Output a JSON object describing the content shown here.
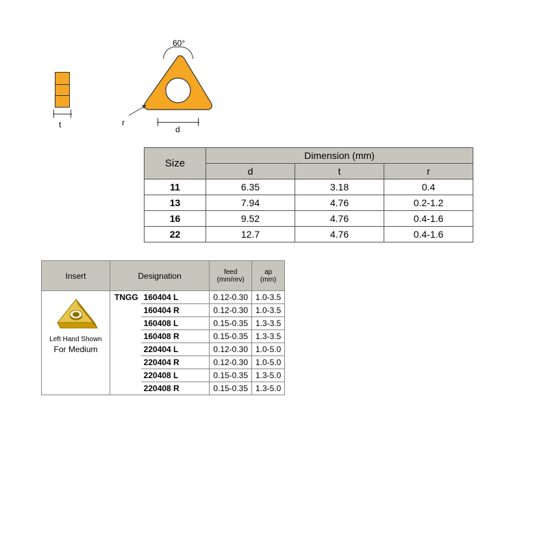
{
  "diagram": {
    "angle": "60°",
    "t_label": "t",
    "d_label": "d",
    "r_label": "r",
    "insert_color": "#f5a623",
    "insert_dark": "#d68a00",
    "stroke": "#333333"
  },
  "dim_table": {
    "size_header": "Size",
    "dimension_header": "Dimension (mm)",
    "cols": [
      "d",
      "t",
      "r"
    ],
    "rows": [
      {
        "size": "11",
        "d": "6.35",
        "t": "3.18",
        "r": "0.4"
      },
      {
        "size": "13",
        "d": "7.94",
        "t": "4.76",
        "r": "0.2-1.2"
      },
      {
        "size": "16",
        "d": "9.52",
        "t": "4.76",
        "r": "0.4-1.6"
      },
      {
        "size": "22",
        "d": "12.7",
        "t": "4.76",
        "r": "0.4-1.6"
      }
    ]
  },
  "ins_table": {
    "headers": {
      "insert": "Insert",
      "designation": "Designation",
      "feed": "feed\n(mm/rev)",
      "ap": "ap\n(mm)"
    },
    "family": "TNGG",
    "caption1": "Left Hand Shown",
    "caption2": "For Medium",
    "rows": [
      {
        "code": "160404 L",
        "feed": "0.12-0.30",
        "ap": "1.0-3.5"
      },
      {
        "code": "160404 R",
        "feed": "0.12-0.30",
        "ap": "1.0-3.5"
      },
      {
        "code": "160408 L",
        "feed": "0.15-0.35",
        "ap": "1.3-3.5"
      },
      {
        "code": "160408 R",
        "feed": "0.15-0.35",
        "ap": "1.3-3.5"
      },
      {
        "code": "220404 L",
        "feed": "0.12-0.30",
        "ap": "1.0-5.0"
      },
      {
        "code": "220404 R",
        "feed": "0.12-0.30",
        "ap": "1.0-5.0"
      },
      {
        "code": "220408 L",
        "feed": "0.15-0.35",
        "ap": "1.3-5.0"
      },
      {
        "code": "220408 R",
        "feed": "0.15-0.35",
        "ap": "1.3-5.0"
      }
    ]
  },
  "colors": {
    "header_bg": "#c8c5bd",
    "border": "#555555",
    "border_light": "#888888",
    "text": "#000000",
    "bg": "#ffffff"
  }
}
